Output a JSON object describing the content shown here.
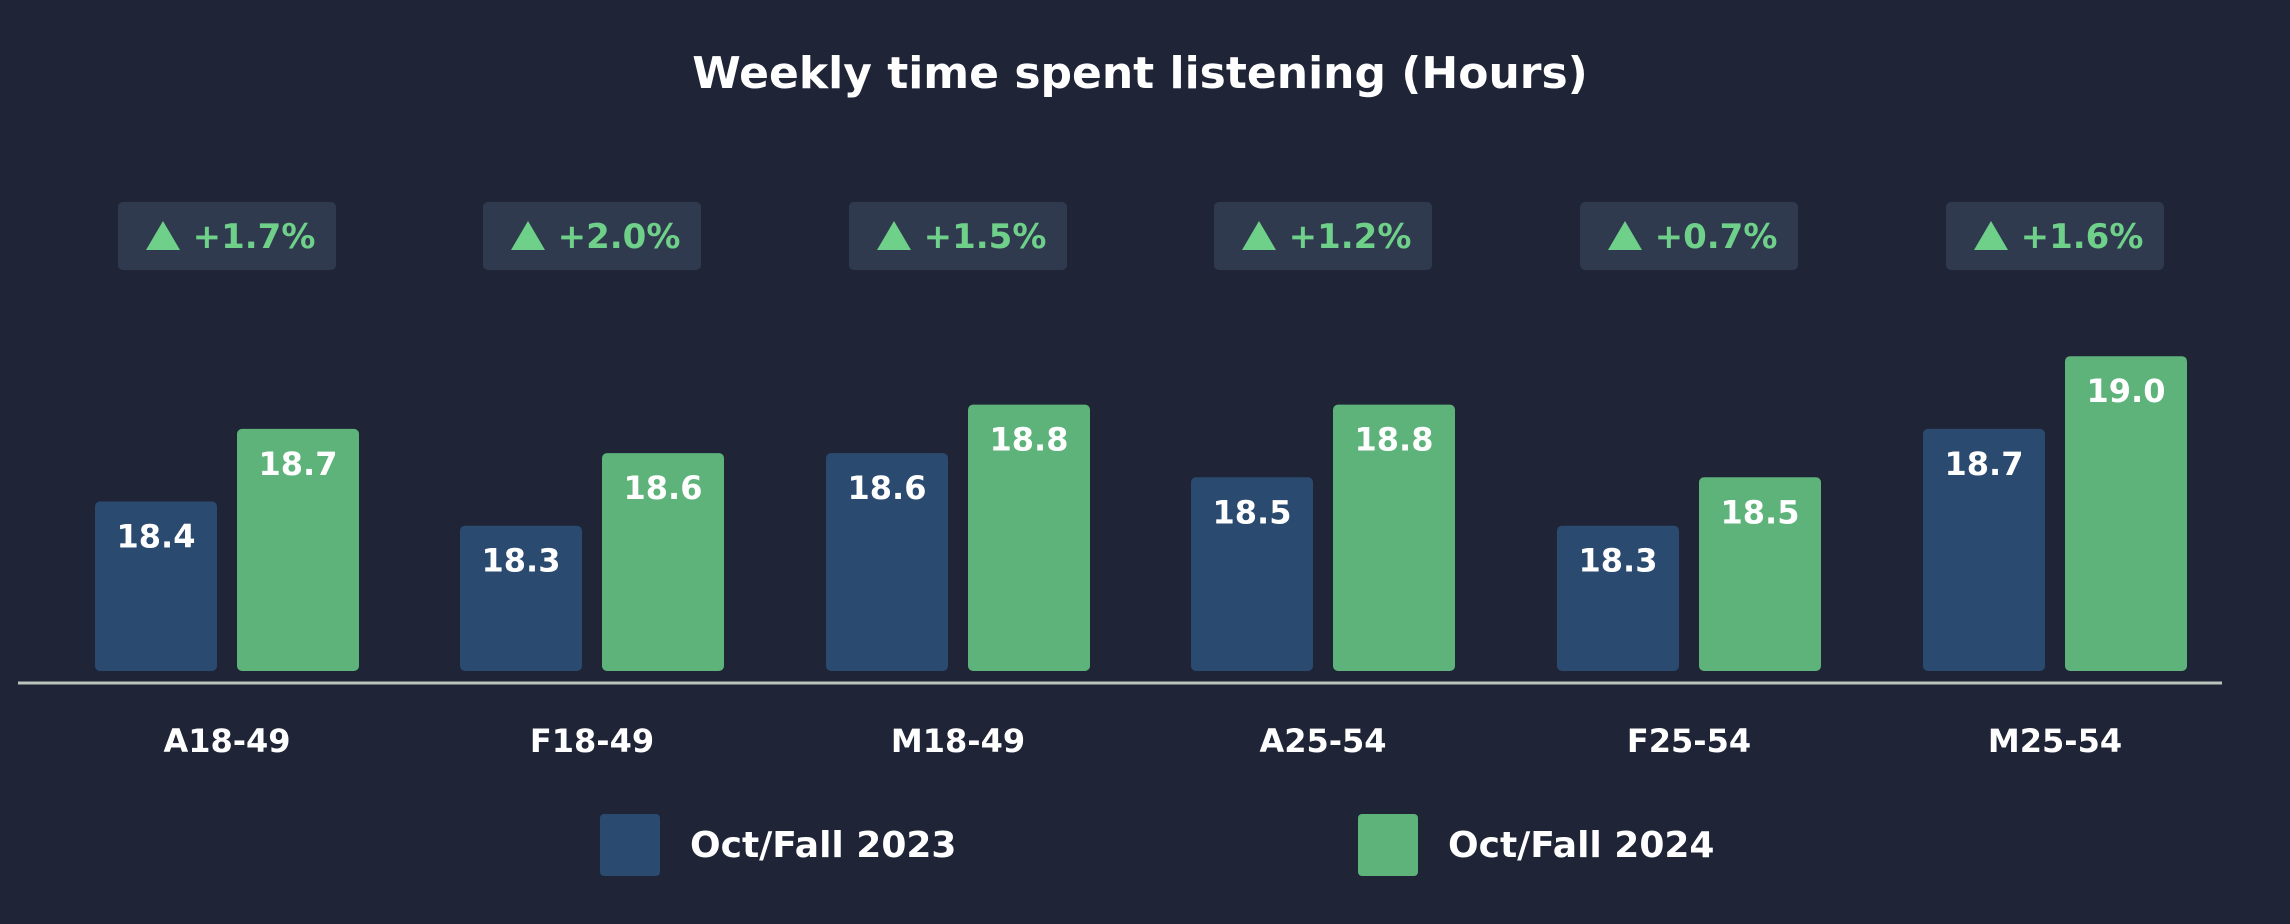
{
  "chart_data": {
    "type": "bar",
    "title": "Weekly time spent listening (Hours)",
    "xlabel": "",
    "ylabel": "",
    "categories": [
      "A18-49",
      "F18-49",
      "M18-49",
      "A25-54",
      "F25-54",
      "M25-54"
    ],
    "series": [
      {
        "name": "Oct/Fall 2023",
        "color": "#2a4a70",
        "values": [
          18.4,
          18.3,
          18.6,
          18.5,
          18.3,
          18.7
        ],
        "labels": [
          "18.4",
          "18.3",
          "18.6",
          "18.5",
          "18.3",
          "18.7"
        ]
      },
      {
        "name": "Oct/Fall 2024",
        "color": "#5db37a",
        "values": [
          18.7,
          18.6,
          18.8,
          18.8,
          18.5,
          19.0
        ],
        "labels": [
          "18.7",
          "18.6",
          "18.8",
          "18.8",
          "18.5",
          "19.0"
        ]
      }
    ],
    "changes": [
      "+1.7%",
      "+2.0%",
      "+1.5%",
      "+1.2%",
      "+0.7%",
      "+1.6%"
    ],
    "change_color": "#6fd08a",
    "ylim": [
      17.7,
      19.1
    ],
    "grid": false,
    "legend_position": "bottom-center"
  },
  "colors": {
    "background": "#1f2536",
    "badge": "#2f3a4f",
    "axis": "#b9c4bd",
    "text": "#ffffff"
  }
}
